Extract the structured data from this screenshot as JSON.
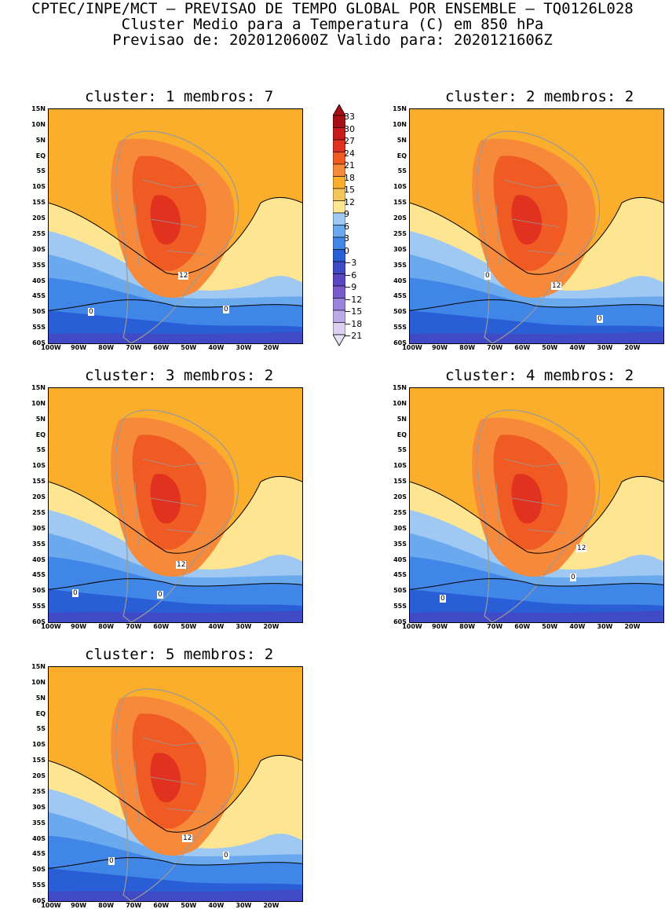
{
  "header": {
    "line1": "CPTEC/INPE/MCT – PREVISAO DE TEMPO GLOBAL POR ENSEMBLE – TQ0126L028",
    "line2": "Cluster Medio para a Temperatura (C) em 850 hPa",
    "line3": "Previsao de: 2020120600Z   Valido para: 2020121606Z"
  },
  "axes": {
    "lat_labels": [
      "15N",
      "10N",
      "5N",
      "EQ",
      "5S",
      "10S",
      "15S",
      "20S",
      "25S",
      "30S",
      "35S",
      "40S",
      "45S",
      "50S",
      "55S",
      "60S"
    ],
    "lon_labels": [
      "100W",
      "90W",
      "80W",
      "70W",
      "60W",
      "50W",
      "40W",
      "30W",
      "20W"
    ]
  },
  "colorbar": {
    "labels": [
      "33",
      "30",
      "27",
      "24",
      "21",
      "18",
      "15",
      "12",
      "9",
      "6",
      "3",
      "0",
      "−3",
      "−6",
      "−9",
      "−12",
      "−15",
      "−18",
      "−21"
    ],
    "colors": [
      "#a50f15",
      "#c81a1c",
      "#e0321e",
      "#f05a23",
      "#f7893a",
      "#fbae2c",
      "#f5c55d",
      "#fde591",
      "#9fc8f3",
      "#6ba9ef",
      "#3f86e6",
      "#2a5ed6",
      "#3f4ac4",
      "#5a47c1",
      "#7a5bcc",
      "#9b84db",
      "#bcaae6",
      "#dcd0f3"
    ]
  },
  "panels": [
    {
      "title": "cluster: 1   membros: 7",
      "contour_labels": [
        "12",
        "0",
        "0"
      ]
    },
    {
      "title": "cluster: 2   membros: 2",
      "contour_labels": [
        "0",
        "12",
        "0"
      ]
    },
    {
      "title": "cluster: 3   membros: 2",
      "contour_labels": [
        "12",
        "0",
        "0"
      ]
    },
    {
      "title": "cluster: 4   membros: 2",
      "contour_labels": [
        "12",
        "0",
        "0"
      ]
    },
    {
      "title": "cluster: 5   membros: 2",
      "contour_labels": [
        "12",
        "0",
        "0"
      ]
    }
  ]
}
